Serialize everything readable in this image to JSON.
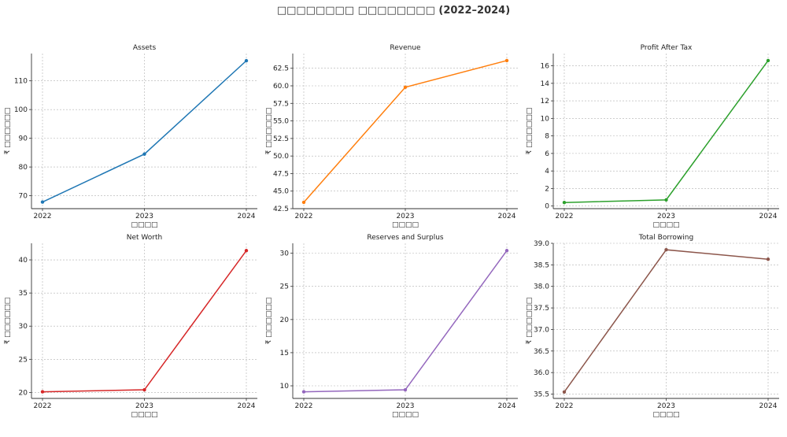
{
  "figure": {
    "title": "□□□□□□□□ □□□□□□□□ (2022–2024)"
  },
  "chart_data": [
    {
      "type": "line",
      "title": "Assets",
      "xlabel": "□□□□",
      "ylabel": "₹ □□□□□□",
      "color": "#1f77b4",
      "x": [
        "2022",
        "2023",
        "2024"
      ],
      "values": [
        67.8,
        84.5,
        117.0
      ],
      "ylim": [
        65.5,
        119.5
      ],
      "yticks": [
        70,
        80,
        90,
        100,
        110
      ],
      "ytick_labels": [
        "70",
        "80",
        "90",
        "100",
        "110"
      ],
      "grid": true
    },
    {
      "type": "line",
      "title": "Revenue",
      "xlabel": "□□□□",
      "ylabel": "₹ □□□□□□",
      "color": "#ff7f0e",
      "x": [
        "2022",
        "2023",
        "2024"
      ],
      "values": [
        43.4,
        59.8,
        63.6
      ],
      "ylim": [
        42.5,
        64.6
      ],
      "yticks": [
        42.5,
        45.0,
        47.5,
        50.0,
        52.5,
        55.0,
        57.5,
        60.0,
        62.5
      ],
      "ytick_labels": [
        "42.5",
        "45.0",
        "47.5",
        "50.0",
        "52.5",
        "55.0",
        "57.5",
        "60.0",
        "62.5"
      ],
      "grid": true
    },
    {
      "type": "line",
      "title": "Profit After Tax",
      "xlabel": "□□□□",
      "ylabel": "₹ □□□□□□",
      "color": "#2ca02c",
      "x": [
        "2022",
        "2023",
        "2024"
      ],
      "values": [
        0.4,
        0.7,
        16.6
      ],
      "ylim": [
        -0.3,
        17.4
      ],
      "yticks": [
        0,
        2,
        4,
        6,
        8,
        10,
        12,
        14,
        16
      ],
      "ytick_labels": [
        "0",
        "2",
        "4",
        "6",
        "8",
        "10",
        "12",
        "14",
        "16"
      ],
      "grid": true
    },
    {
      "type": "line",
      "title": "Net Worth",
      "xlabel": "□□□□",
      "ylabel": "₹ □□□□□□",
      "color": "#d62728",
      "x": [
        "2022",
        "2023",
        "2024"
      ],
      "values": [
        20.1,
        20.4,
        41.4
      ],
      "ylim": [
        19.1,
        42.5
      ],
      "yticks": [
        20,
        25,
        30,
        35,
        40
      ],
      "ytick_labels": [
        "20",
        "25",
        "30",
        "35",
        "40"
      ],
      "grid": true
    },
    {
      "type": "line",
      "title": "Reserves and Surplus",
      "xlabel": "□□□□",
      "ylabel": "₹ □□□□□□",
      "color": "#9467bd",
      "x": [
        "2022",
        "2023",
        "2024"
      ],
      "values": [
        9.1,
        9.4,
        30.4
      ],
      "ylim": [
        8.1,
        31.5
      ],
      "yticks": [
        10,
        15,
        20,
        25,
        30
      ],
      "ytick_labels": [
        "10",
        "15",
        "20",
        "25",
        "30"
      ],
      "grid": true
    },
    {
      "type": "line",
      "title": "Total Borrowing",
      "xlabel": "□□□□",
      "ylabel": "₹ □□□□□□",
      "color": "#8c564b",
      "x": [
        "2022",
        "2023",
        "2024"
      ],
      "values": [
        35.55,
        38.85,
        38.63
      ],
      "ylim": [
        35.4,
        39.0
      ],
      "yticks": [
        35.5,
        36.0,
        36.5,
        37.0,
        37.5,
        38.0,
        38.5,
        39.0
      ],
      "ytick_labels": [
        "35.5",
        "36.0",
        "36.5",
        "37.0",
        "37.5",
        "38.0",
        "38.5",
        "39.0"
      ],
      "grid": true
    }
  ]
}
